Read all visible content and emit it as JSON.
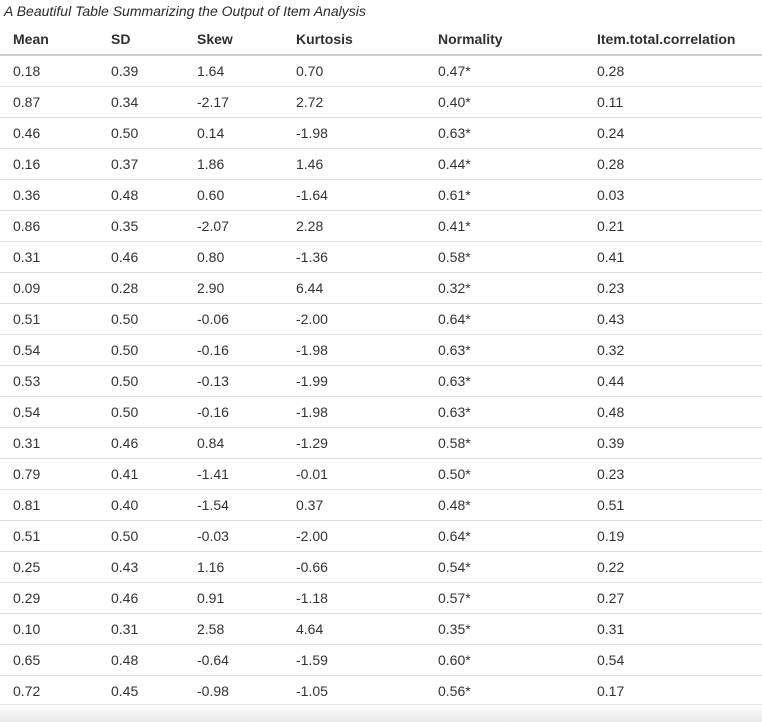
{
  "chart_data": {
    "type": "table",
    "title": "A Beautiful Table Summarizing the Output of Item Analysis",
    "columns": [
      "Mean",
      "SD",
      "Skew",
      "Kurtosis",
      "Normality",
      "Item.total.correlation"
    ],
    "rows": [
      [
        "0.18",
        "0.39",
        "1.64",
        "0.70",
        "0.47*",
        "0.28"
      ],
      [
        "0.87",
        "0.34",
        "-2.17",
        "2.72",
        "0.40*",
        "0.11"
      ],
      [
        "0.46",
        "0.50",
        "0.14",
        "-1.98",
        "0.63*",
        "0.24"
      ],
      [
        "0.16",
        "0.37",
        "1.86",
        "1.46",
        "0.44*",
        "0.28"
      ],
      [
        "0.36",
        "0.48",
        "0.60",
        "-1.64",
        "0.61*",
        "0.03"
      ],
      [
        "0.86",
        "0.35",
        "-2.07",
        "2.28",
        "0.41*",
        "0.21"
      ],
      [
        "0.31",
        "0.46",
        "0.80",
        "-1.36",
        "0.58*",
        "0.41"
      ],
      [
        "0.09",
        "0.28",
        "2.90",
        "6.44",
        "0.32*",
        "0.23"
      ],
      [
        "0.51",
        "0.50",
        "-0.06",
        "-2.00",
        "0.64*",
        "0.43"
      ],
      [
        "0.54",
        "0.50",
        "-0.16",
        "-1.98",
        "0.63*",
        "0.32"
      ],
      [
        "0.53",
        "0.50",
        "-0.13",
        "-1.99",
        "0.63*",
        "0.44"
      ],
      [
        "0.54",
        "0.50",
        "-0.16",
        "-1.98",
        "0.63*",
        "0.48"
      ],
      [
        "0.31",
        "0.46",
        "0.84",
        "-1.29",
        "0.58*",
        "0.39"
      ],
      [
        "0.79",
        "0.41",
        "-1.41",
        "-0.01",
        "0.50*",
        "0.23"
      ],
      [
        "0.81",
        "0.40",
        "-1.54",
        "0.37",
        "0.48*",
        "0.51"
      ],
      [
        "0.51",
        "0.50",
        "-0.03",
        "-2.00",
        "0.64*",
        "0.19"
      ],
      [
        "0.25",
        "0.43",
        "1.16",
        "-0.66",
        "0.54*",
        "0.22"
      ],
      [
        "0.29",
        "0.46",
        "0.91",
        "-1.18",
        "0.57*",
        "0.27"
      ],
      [
        "0.10",
        "0.31",
        "2.58",
        "4.64",
        "0.35*",
        "0.31"
      ],
      [
        "0.65",
        "0.48",
        "-0.64",
        "-1.59",
        "0.60*",
        "0.54"
      ],
      [
        "0.72",
        "0.45",
        "-0.98",
        "-1.05",
        "0.56*",
        "0.17"
      ]
    ],
    "layout": {
      "caption_style": "italic",
      "header_style": "bold",
      "grid": "horizontal-rules-only",
      "legend_position": "none"
    },
    "colors": {
      "text": "#333333",
      "row_border": "#dddddd",
      "header_border": "#cccccc",
      "background": "#ffffff",
      "bottom_fade_top": "#fdfdfd",
      "bottom_fade_bottom": "#eaeaea"
    }
  }
}
